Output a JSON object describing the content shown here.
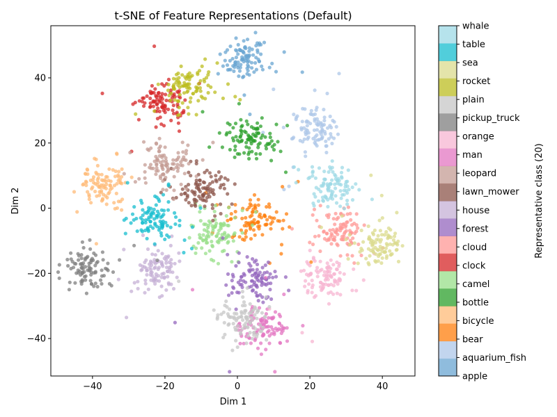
{
  "chart_data": {
    "type": "scatter",
    "title": "t-SNE of Feature Representations (Default)",
    "xlabel": "Dim 1",
    "ylabel": "Dim 2",
    "xlim": [
      -51.5,
      49
    ],
    "ylim": [
      -51.5,
      56
    ],
    "xticks": [
      -40,
      -20,
      0,
      20,
      40
    ],
    "yticks": [
      -40,
      -20,
      0,
      20,
      40
    ],
    "xtick_labels": [
      "−40",
      "−20",
      "0",
      "20",
      "40"
    ],
    "ytick_labels": [
      "−40",
      "−20",
      "0",
      "20",
      "40"
    ],
    "colorbar_label": "Representative class (20)",
    "grid": false,
    "classes": [
      {
        "name": "apple",
        "color": "#6aa5d2",
        "centers": [
          [
            2,
            46
          ]
        ]
      },
      {
        "name": "aquarium_fish",
        "color": "#aec7e8",
        "centers": [
          [
            22,
            24
          ]
        ]
      },
      {
        "name": "bear",
        "color": "#ff7f0e",
        "centers": [
          [
            5,
            -3
          ]
        ]
      },
      {
        "name": "bicycle",
        "color": "#ffbb78",
        "centers": [
          [
            -37,
            7
          ]
        ]
      },
      {
        "name": "bottle",
        "color": "#2ca02c",
        "centers": [
          [
            3,
            21
          ]
        ]
      },
      {
        "name": "camel",
        "color": "#98df8a",
        "centers": [
          [
            -6,
            -7
          ]
        ]
      },
      {
        "name": "clock",
        "color": "#d62728",
        "centers": [
          [
            -21,
            32
          ]
        ]
      },
      {
        "name": "cloud",
        "color": "#ff9896",
        "centers": [
          [
            28,
            -7
          ]
        ]
      },
      {
        "name": "forest",
        "color": "#9467bd",
        "centers": [
          [
            4,
            -22
          ]
        ]
      },
      {
        "name": "house",
        "color": "#c5b0d5",
        "centers": [
          [
            -22,
            -19
          ]
        ]
      },
      {
        "name": "lawn_mower",
        "color": "#8c564b",
        "centers": [
          [
            -10,
            5
          ]
        ]
      },
      {
        "name": "leopard",
        "color": "#c49c94",
        "centers": [
          [
            -20,
            13
          ]
        ]
      },
      {
        "name": "man",
        "color": "#e377c2",
        "centers": [
          [
            7,
            -37
          ]
        ]
      },
      {
        "name": "orange",
        "color": "#f7b6d2",
        "centers": [
          [
            24,
            -21
          ]
        ]
      },
      {
        "name": "pickup_truck",
        "color": "#7f7f7f",
        "centers": [
          [
            -41,
            -18
          ]
        ]
      },
      {
        "name": "plain",
        "color": "#c7c7c7",
        "centers": [
          [
            2,
            -34
          ]
        ]
      },
      {
        "name": "rocket",
        "color": "#bcbd22",
        "centers": [
          [
            -14,
            37
          ]
        ]
      },
      {
        "name": "sea",
        "color": "#dbdb8d",
        "centers": [
          [
            39,
            -11
          ]
        ]
      },
      {
        "name": "table",
        "color": "#17becf",
        "centers": [
          [
            -23,
            -4
          ]
        ]
      },
      {
        "name": "whale",
        "color": "#9edae5",
        "centers": [
          [
            26,
            7
          ]
        ]
      }
    ]
  }
}
